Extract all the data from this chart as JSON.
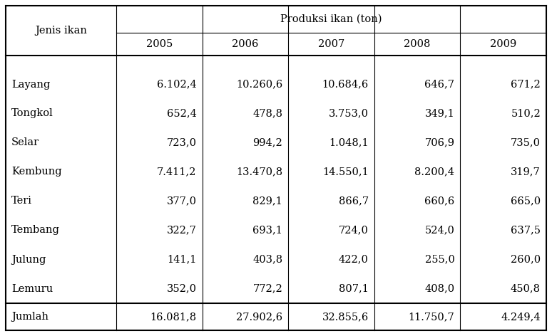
{
  "header_main": "Produksi ikan (ton)",
  "col_header_left": "Jenis ikan",
  "years": [
    "2005",
    "2006",
    "2007",
    "2008",
    "2009"
  ],
  "rows": [
    [
      "Layang",
      "6.102,4",
      "10.260,6",
      "10.684,6",
      "646,7",
      "671,2"
    ],
    [
      "Tongkol",
      "652,4",
      "478,8",
      "3.753,0",
      "349,1",
      "510,2"
    ],
    [
      "Selar",
      "723,0",
      "994,2",
      "1.048,1",
      "706,9",
      "735,0"
    ],
    [
      "Kembung",
      "7.411,2",
      "13.470,8",
      "14.550,1",
      "8.200,4",
      "319,7"
    ],
    [
      "Teri",
      "377,0",
      "829,1",
      "866,7",
      "660,6",
      "665,0"
    ],
    [
      "Tembang",
      "322,7",
      "693,1",
      "724,0",
      "524,0",
      "637,5"
    ],
    [
      "Julung",
      "141,1",
      "403,8",
      "422,0",
      "255,0",
      "260,0"
    ],
    [
      "Lemuru",
      "352,0",
      "772,2",
      "807,1",
      "408,0",
      "450,8"
    ]
  ],
  "total_row": [
    "Jumlah",
    "16.081,8",
    "27.902,6",
    "32.855,6",
    "11.750,7",
    "4.249,4"
  ],
  "font_size": 10.5,
  "bg_color": "#ffffff",
  "border_color": "#000000",
  "fig_width": 7.74,
  "fig_height": 4.72,
  "dpi": 100
}
